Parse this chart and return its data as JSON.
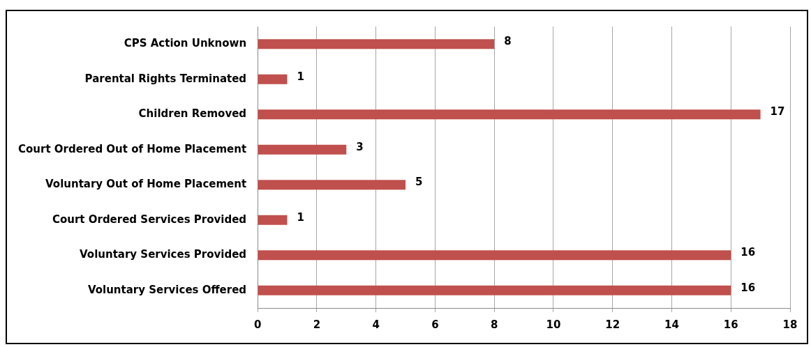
{
  "chart_data": {
    "type": "bar",
    "orientation": "horizontal",
    "categories": [
      "CPS Action Unknown",
      "Parental Rights Terminated",
      "Children Removed",
      "Court Ordered Out of Home Placement",
      "Voluntary Out of Home Placement",
      "Court Ordered Services Provided",
      "Voluntary Services Provided",
      "Voluntary Services Offered"
    ],
    "values": [
      8,
      1,
      17,
      3,
      5,
      1,
      16,
      16
    ],
    "color": "#c0504d",
    "xlim": [
      0,
      18
    ],
    "xticks": [
      0,
      2,
      4,
      6,
      8,
      10,
      12,
      14,
      16,
      18
    ],
    "grid": "x",
    "data_labels": true,
    "legend": false
  }
}
